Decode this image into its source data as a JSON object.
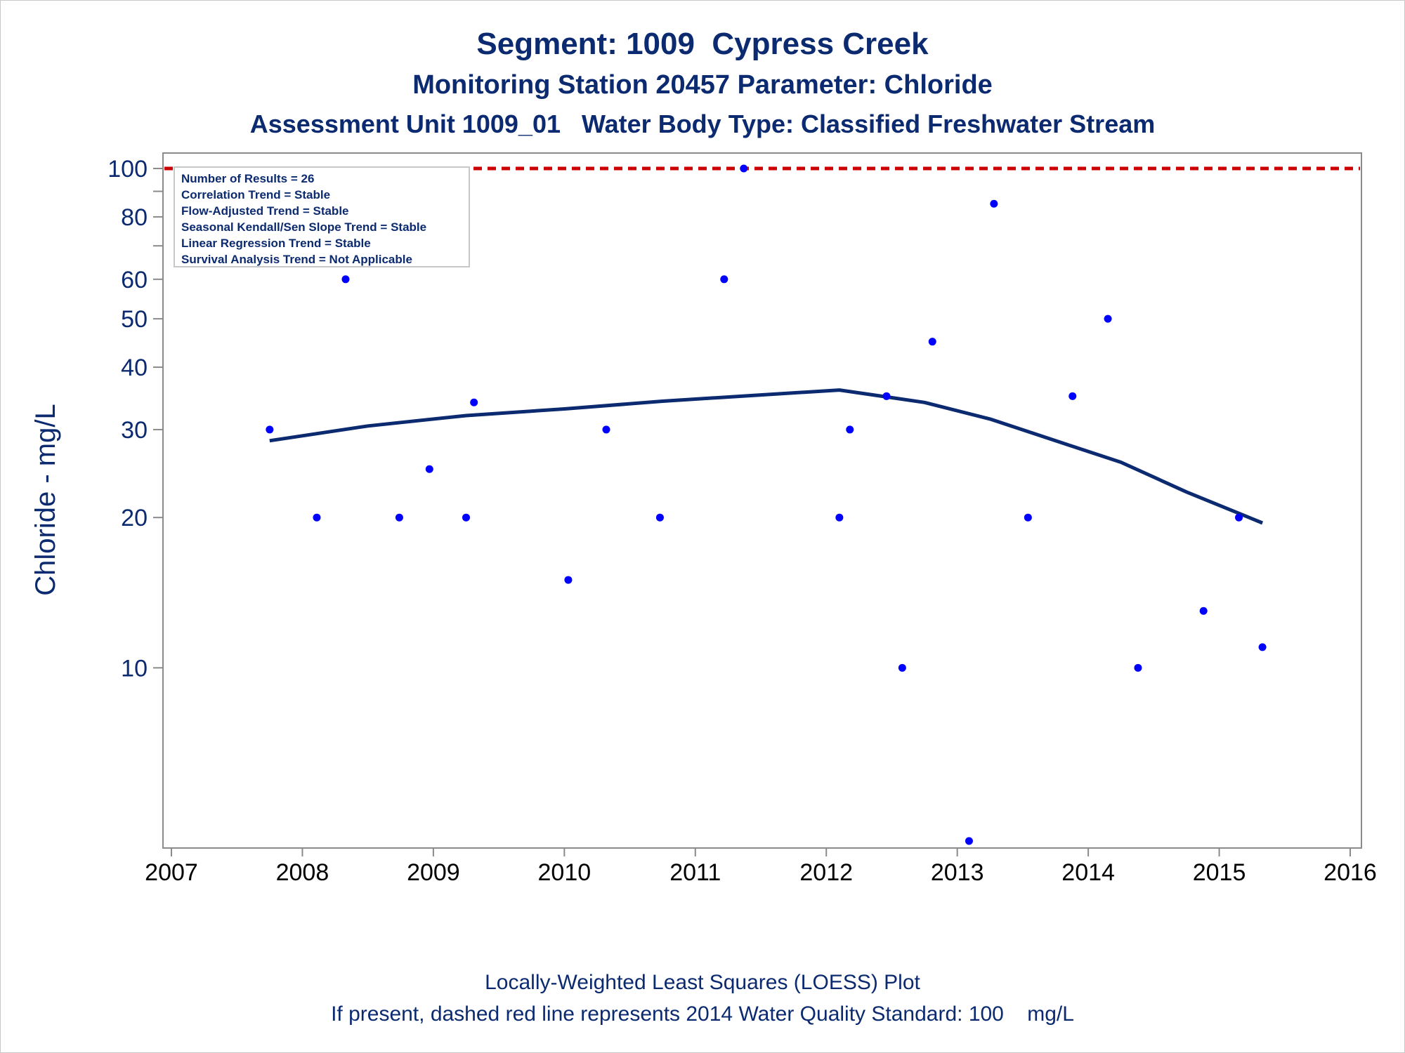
{
  "header": {
    "title": "Segment: 1009  Cypress Creek",
    "subtitle": "Monitoring Station 20457 Parameter: Chloride",
    "subtitle2": "Assessment Unit 1009_01   Water Body Type: Classified Freshwater Stream"
  },
  "footer": {
    "line1": "Locally-Weighted Least Squares (LOESS) Plot",
    "line2": "If present, dashed red line represents 2014 Water Quality Standard: 100    mg/L"
  },
  "colors": {
    "text": "#0b2a6f",
    "points": "#0000ff",
    "loess": "#0b2a6f",
    "standard": "#cc0000",
    "axis": "#8a8a8a"
  },
  "chart_data": {
    "type": "scatter",
    "ylabel": "Chloride - mg/L",
    "xlabel": "",
    "y_scale": "log",
    "xlim": [
      2007,
      2016
    ],
    "ylim": [
      4.5,
      100
    ],
    "x_ticks": [
      "2007",
      "2008",
      "2009",
      "2010",
      "2011",
      "2012",
      "2013",
      "2014",
      "2015",
      "2016"
    ],
    "y_ticks_labeled": [
      "10",
      "20",
      "30",
      "40",
      "50",
      "60",
      "80",
      "100"
    ],
    "y_ticks_minor": [
      70,
      90
    ],
    "legend_box": {
      "position": "top-left",
      "lines": [
        "Number of Results = 26",
        "Correlation Trend = Stable",
        "Flow-Adjusted Trend = Stable",
        "Seasonal Kendall/Sen Slope Trend = Stable",
        "Linear Regression Trend = Stable",
        "Survival Analysis Trend = Not Applicable"
      ]
    },
    "standard_line": {
      "value": 100,
      "style": "dashed"
    },
    "series": [
      {
        "type": "scatter",
        "x": [
          2007.75,
          2008.11,
          2008.33,
          2008.74,
          2008.97,
          2009.25,
          2009.31,
          2010.03,
          2010.32,
          2010.73,
          2011.22,
          2011.37,
          2012.1,
          2012.18,
          2012.46,
          2012.58,
          2012.81,
          2013.09,
          2013.28,
          2013.54,
          2013.88,
          2014.15,
          2014.38,
          2014.88,
          2015.15,
          2015.33
        ],
        "y": [
          30,
          20,
          60,
          20,
          25,
          20,
          34,
          15,
          30,
          20,
          60,
          100,
          20,
          30,
          35,
          10,
          45,
          4.5,
          85,
          20,
          35,
          50,
          10,
          13,
          20,
          11
        ]
      },
      {
        "type": "line",
        "x": [
          2007.75,
          2008.5,
          2009.25,
          2010.0,
          2010.75,
          2011.5,
          2012.1,
          2012.75,
          2013.25,
          2013.75,
          2014.25,
          2014.75,
          2015.33
        ],
        "y": [
          28.5,
          30.5,
          32.0,
          33.0,
          34.2,
          35.2,
          36.0,
          34.0,
          31.5,
          28.5,
          25.8,
          22.5,
          19.5
        ]
      }
    ]
  }
}
